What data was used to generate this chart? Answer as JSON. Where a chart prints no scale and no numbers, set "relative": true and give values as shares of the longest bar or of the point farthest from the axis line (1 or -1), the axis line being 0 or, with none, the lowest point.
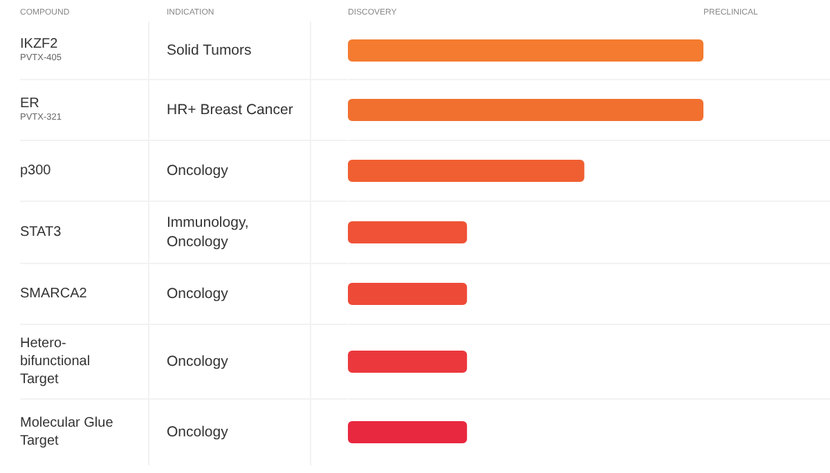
{
  "chart_data": {
    "type": "bar",
    "orientation": "horizontal",
    "relative": true,
    "categories": [
      "IKZF2\nPVTX-405",
      "ER\nPVTX-321",
      "p300",
      "STAT3",
      "SMARCA2",
      "Hetero-bifunctional Target",
      "Molecular Glue Target"
    ],
    "values": [
      1,
      1,
      0.665,
      0.335,
      0.335,
      0.335,
      0.335
    ],
    "colors": [
      "#f47b30",
      "#f2702f",
      "#f05f31",
      "#ef5236",
      "#ee4a38",
      "#eb383d",
      "#e8283f"
    ],
    "annotations": [
      "COMPOUND",
      "INDICATION",
      "DISCOVERY",
      "PRECLINICAL",
      "Solid Tumors",
      "HR+ Breast Cancer",
      "Oncology",
      "Immunology, Oncology",
      "Oncology",
      "Oncology",
      "Oncology"
    ]
  }
}
